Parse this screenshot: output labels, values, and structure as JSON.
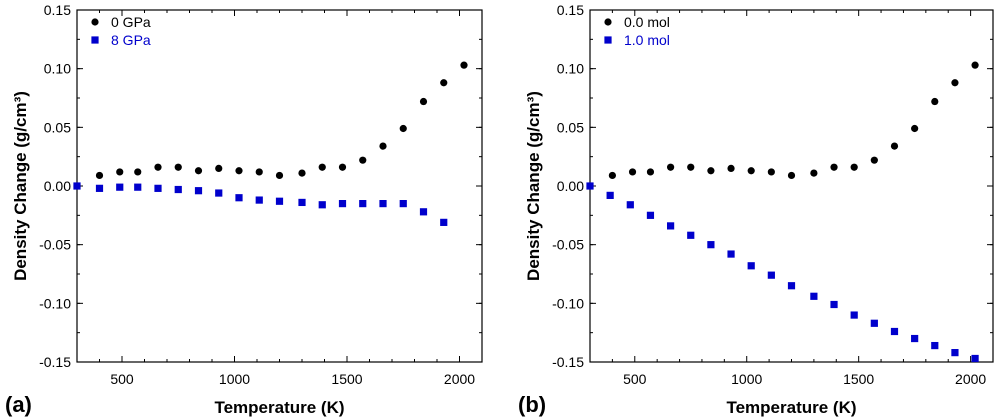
{
  "chart_data": [
    {
      "type": "scatter",
      "panel_label": "(a)",
      "xlabel": "Temperature (K)",
      "ylabel": "Density Change (g/cm³)",
      "xlim": [
        300,
        2100
      ],
      "ylim": [
        -0.15,
        0.15
      ],
      "xticks": [
        500,
        1000,
        1500,
        2000
      ],
      "yticks": [
        -0.15,
        -0.1,
        -0.05,
        0.0,
        0.05,
        0.1,
        0.15
      ],
      "ytick_labels": [
        "-0.15",
        "-0.10",
        "-0.05",
        "0.00",
        "0.05",
        "0.10",
        "0.15"
      ],
      "grid": false,
      "legend_position": "top-left",
      "series": [
        {
          "name": "0 GPa",
          "color": "#000000",
          "marker": "circle",
          "x": [
            300,
            400,
            490,
            570,
            660,
            750,
            840,
            930,
            1020,
            1110,
            1200,
            1300,
            1390,
            1480,
            1570,
            1660,
            1750,
            1840,
            1930,
            2020
          ],
          "y": [
            0.0,
            0.009,
            0.012,
            0.012,
            0.016,
            0.016,
            0.013,
            0.015,
            0.013,
            0.012,
            0.009,
            0.011,
            0.016,
            0.016,
            0.022,
            0.034,
            0.049,
            0.072,
            0.088,
            0.103
          ]
        },
        {
          "name": "8 GPa",
          "color": "#0000cc",
          "marker": "square",
          "x": [
            300,
            400,
            490,
            570,
            660,
            750,
            840,
            930,
            1020,
            1110,
            1200,
            1300,
            1390,
            1480,
            1570,
            1660,
            1750,
            1840,
            1930
          ],
          "y": [
            0.0,
            -0.002,
            -0.001,
            -0.001,
            -0.002,
            -0.003,
            -0.004,
            -0.006,
            -0.01,
            -0.012,
            -0.013,
            -0.014,
            -0.016,
            -0.015,
            -0.015,
            -0.015,
            -0.015,
            -0.022,
            -0.031
          ]
        }
      ]
    },
    {
      "type": "scatter",
      "panel_label": "(b)",
      "xlabel": "Temperature (K)",
      "ylabel": "Density Change (g/cm³)",
      "xlim": [
        300,
        2100
      ],
      "ylim": [
        -0.15,
        0.15
      ],
      "xticks": [
        500,
        1000,
        1500,
        2000
      ],
      "yticks": [
        -0.15,
        -0.1,
        -0.05,
        0.0,
        0.05,
        0.1,
        0.15
      ],
      "ytick_labels": [
        "-0.15",
        "-0.10",
        "-0.05",
        "0.00",
        "0.05",
        "0.10",
        "0.15"
      ],
      "grid": false,
      "legend_position": "top-left",
      "series": [
        {
          "name": "0.0 mol",
          "color": "#000000",
          "marker": "circle",
          "x": [
            300,
            400,
            490,
            570,
            660,
            750,
            840,
            930,
            1020,
            1110,
            1200,
            1300,
            1390,
            1480,
            1570,
            1660,
            1750,
            1840,
            1930,
            2020
          ],
          "y": [
            0.0,
            0.009,
            0.012,
            0.012,
            0.016,
            0.016,
            0.013,
            0.015,
            0.013,
            0.012,
            0.009,
            0.011,
            0.016,
            0.016,
            0.022,
            0.034,
            0.049,
            0.072,
            0.088,
            0.103
          ]
        },
        {
          "name": "1.0 mol",
          "color": "#0000cc",
          "marker": "square",
          "x": [
            300,
            390,
            480,
            570,
            660,
            750,
            840,
            930,
            1020,
            1110,
            1200,
            1300,
            1390,
            1480,
            1570,
            1660,
            1750,
            1840,
            1930,
            2020
          ],
          "y": [
            0.0,
            -0.008,
            -0.016,
            -0.025,
            -0.034,
            -0.042,
            -0.05,
            -0.058,
            -0.068,
            -0.076,
            -0.085,
            -0.094,
            -0.101,
            -0.11,
            -0.117,
            -0.124,
            -0.13,
            -0.136,
            -0.142,
            -0.147
          ]
        }
      ]
    }
  ]
}
